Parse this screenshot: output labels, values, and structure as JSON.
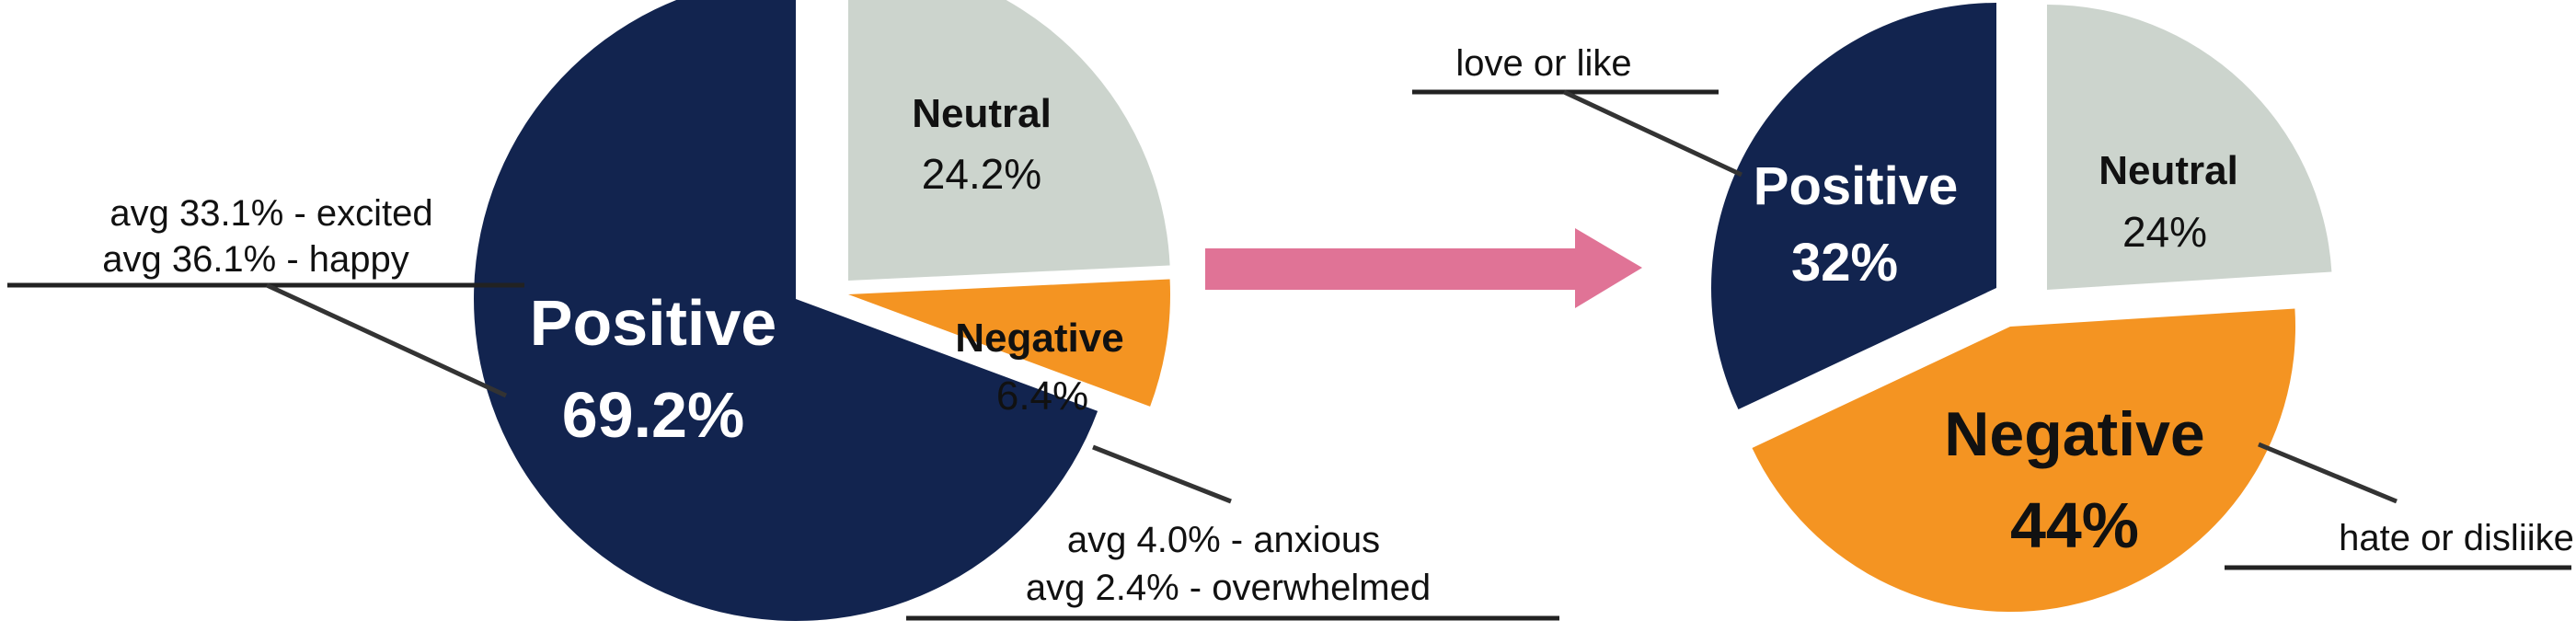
{
  "chart_data": [
    {
      "type": "pie",
      "title": "",
      "slices": [
        {
          "label": "Positive",
          "value_label": "69.2%",
          "value": 69.2,
          "color": "#12244f",
          "text_color": "#ffffff"
        },
        {
          "label": "Neutral",
          "value_label": "24.2%",
          "value": 24.2,
          "color": "#ccd4cd",
          "text_color": "#111111"
        },
        {
          "label": "Negative",
          "value_label": "6.4%",
          "value": 6.4,
          "color": "#f49422",
          "text_color": "#111111"
        }
      ],
      "annotations": {
        "positive": [
          "avg 33.1% - excited",
          "avg 36.1% - happy"
        ],
        "negative": [
          "avg 4.0% - anxious",
          "avg 2.4% - overwhelmed"
        ]
      }
    },
    {
      "type": "pie",
      "title": "",
      "slices": [
        {
          "label": "Positive",
          "value_label": "32%",
          "value": 32,
          "color": "#12244f",
          "text_color": "#ffffff"
        },
        {
          "label": "Neutral",
          "value_label": "24%",
          "value": 24,
          "color": "#ccd4cd",
          "text_color": "#111111"
        },
        {
          "label": "Negative",
          "value_label": "44%",
          "value": 44,
          "color": "#f49422",
          "text_color": "#111111"
        }
      ],
      "annotations": {
        "positive": [
          "love or like"
        ],
        "negative": [
          "hate or disliike"
        ]
      }
    }
  ],
  "arrow_color": "#e07396"
}
